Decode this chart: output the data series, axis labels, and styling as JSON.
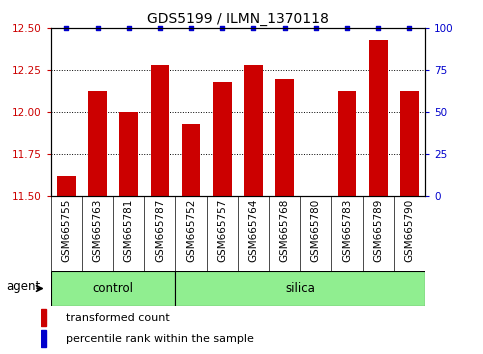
{
  "title": "GDS5199 / ILMN_1370118",
  "samples": [
    "GSM665755",
    "GSM665763",
    "GSM665781",
    "GSM665787",
    "GSM665752",
    "GSM665757",
    "GSM665764",
    "GSM665768",
    "GSM665780",
    "GSM665783",
    "GSM665789",
    "GSM665790"
  ],
  "bar_values": [
    11.62,
    12.13,
    12.0,
    12.28,
    11.93,
    12.18,
    12.28,
    12.2,
    11.5,
    12.13,
    12.43,
    12.13
  ],
  "percentile_values": [
    100,
    100,
    100,
    100,
    100,
    100,
    100,
    100,
    100,
    100,
    100,
    100
  ],
  "ylim_left": [
    11.5,
    12.5
  ],
  "yticks_left": [
    11.5,
    11.75,
    12.0,
    12.25,
    12.5
  ],
  "yticks_right": [
    0,
    25,
    50,
    75,
    100
  ],
  "bar_color": "#cc0000",
  "dot_color": "#0000cc",
  "bar_bottom": 11.5,
  "control_count": 4,
  "silica_count": 8,
  "control_label": "control",
  "silica_label": "silica",
  "agent_label": "agent",
  "legend_bar_label": "transformed count",
  "legend_dot_label": "percentile rank within the sample",
  "group_bg_color": "#90ee90",
  "tick_bg_color": "#c8c8c8",
  "background_color": "#ffffff",
  "title_fontsize": 10,
  "tick_fontsize": 7.5,
  "label_fontsize": 8.5,
  "legend_fontsize": 8
}
